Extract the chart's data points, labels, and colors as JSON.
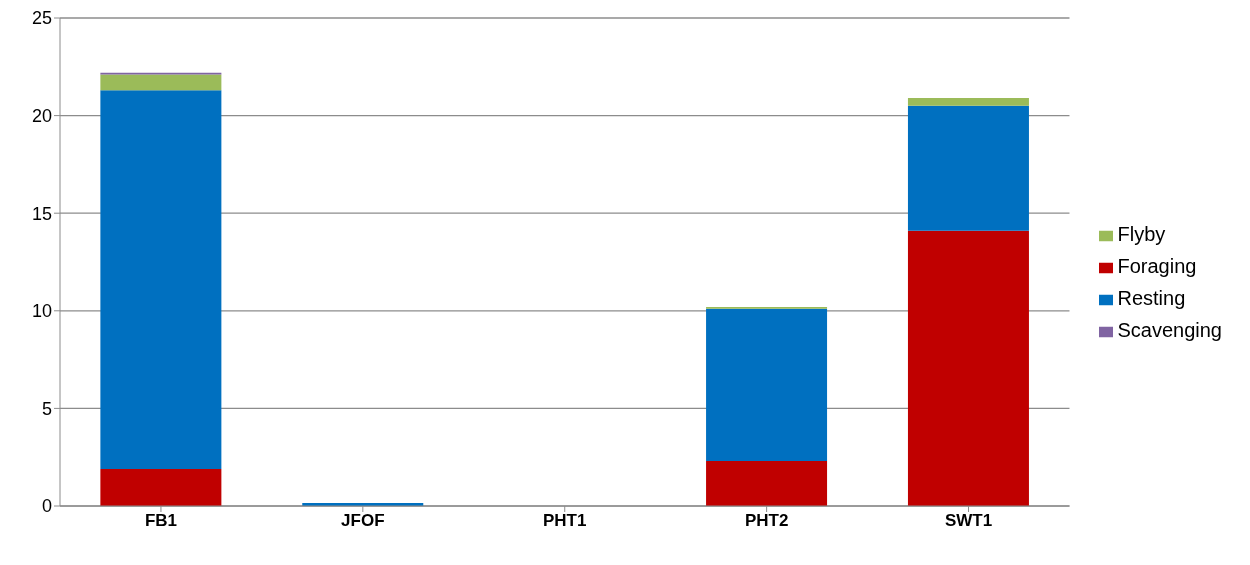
{
  "chart_data": {
    "type": "bar",
    "stacked": true,
    "categories": [
      "FB1",
      "JFOF",
      "PHT1",
      "PHT2",
      "SWT1"
    ],
    "series": [
      {
        "name": "Foraging",
        "color": "#c00000",
        "values": [
          1.9,
          0,
          0,
          2.3,
          14.1
        ]
      },
      {
        "name": "Resting",
        "color": "#0070c0",
        "values": [
          19.4,
          0.15,
          0,
          7.8,
          6.4
        ]
      },
      {
        "name": "Flyby",
        "color": "#9bbb59",
        "values": [
          0.8,
          0,
          0,
          0.1,
          0.4
        ]
      },
      {
        "name": "Scavenging",
        "color": "#8064a2",
        "values": [
          0.1,
          0,
          0,
          0,
          0
        ]
      }
    ],
    "ylim": [
      0,
      25
    ],
    "yticks": [
      0,
      5,
      10,
      15,
      20,
      25
    ],
    "grid": "y",
    "legend": "right"
  }
}
